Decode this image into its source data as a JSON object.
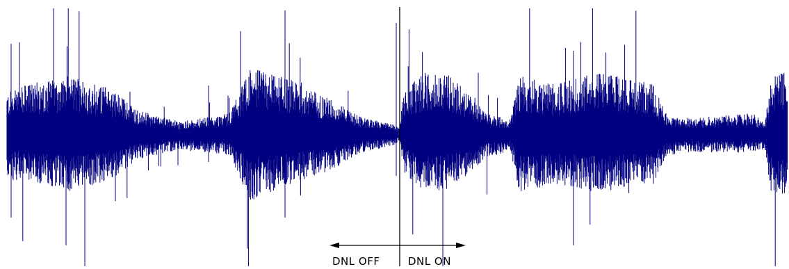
{
  "figure": {
    "waveform_color": "#000080",
    "annotation_color": "#000000",
    "labels": {
      "left": "DNL OFF",
      "right": "DNL ON"
    }
  }
}
